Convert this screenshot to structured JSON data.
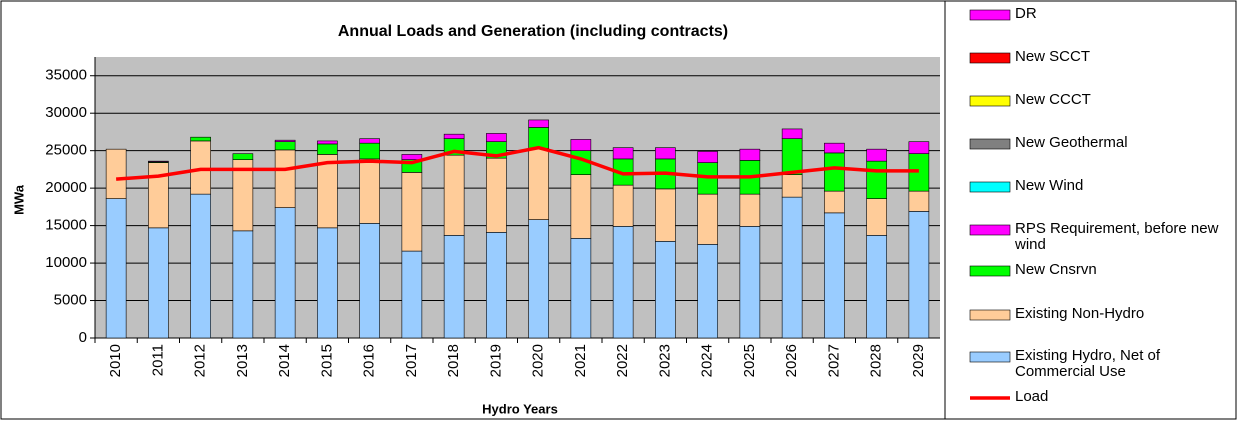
{
  "chart_data": {
    "type": "bar",
    "stacked": true,
    "title": "Annual Loads and Generation (including contracts)",
    "y_label": "MWa",
    "x_label": "Hydro Years",
    "categories": [
      "2010",
      "2011",
      "2012",
      "2013",
      "2014",
      "2015",
      "2016",
      "2017",
      "2018",
      "2019",
      "2020",
      "2021",
      "2022",
      "2023",
      "2024",
      "2025",
      "2026",
      "2027",
      "2028",
      "2029"
    ],
    "ylim": [
      0,
      37500
    ],
    "yticks": [
      0,
      5000,
      10000,
      15000,
      20000,
      25000,
      30000,
      35000
    ],
    "grid": true,
    "legend": "right",
    "series": [
      {
        "name": "DR",
        "color": "#ff00ff",
        "values": [
          0,
          0,
          0,
          0,
          0,
          0,
          0,
          0,
          0,
          0,
          0,
          0,
          0,
          0,
          0,
          0,
          0,
          0,
          0,
          0
        ]
      },
      {
        "name": "New SCCT",
        "color": "#ff0000",
        "values": [
          0,
          0,
          0,
          0,
          0,
          0,
          0,
          0,
          0,
          0,
          0,
          0,
          0,
          0,
          0,
          0,
          0,
          0,
          0,
          0
        ]
      },
      {
        "name": "New CCCT",
        "color": "#ffff00",
        "values": [
          0,
          0,
          0,
          0,
          0,
          0,
          0,
          0,
          0,
          0,
          0,
          0,
          0,
          0,
          0,
          0,
          0,
          0,
          0,
          0
        ]
      },
      {
        "name": "New Geothermal",
        "color": "#808080",
        "values": [
          0,
          0,
          0,
          0,
          0,
          0,
          0,
          0,
          0,
          0,
          0,
          0,
          0,
          0,
          0,
          0,
          0,
          0,
          0,
          0
        ]
      },
      {
        "name": "New Wind",
        "color": "#00ffff",
        "values": [
          0,
          0,
          0,
          0,
          0,
          0,
          0,
          0,
          0,
          0,
          0,
          0,
          0,
          0,
          0,
          0,
          0,
          0,
          0,
          0
        ]
      },
      {
        "name": "RPS Requirement, before new wind",
        "color": "#ff00ff",
        "values": [
          0,
          100,
          0,
          0,
          200,
          400,
          600,
          700,
          600,
          1100,
          1000,
          1500,
          1500,
          1500,
          1500,
          1500,
          1300,
          1300,
          1600,
          1600
        ]
      },
      {
        "name": "New Cnsrvn",
        "color": "#00ff00",
        "values": [
          0,
          100,
          500,
          800,
          1100,
          1400,
          2100,
          1700,
          2200,
          2200,
          2800,
          3200,
          3500,
          4000,
          4200,
          4500,
          4800,
          5100,
          5000,
          5000
        ]
      },
      {
        "name": "Existing Non-Hydro",
        "color": "#ffcc99",
        "values": [
          6600,
          8700,
          7100,
          9500,
          7700,
          9800,
          8600,
          10500,
          10700,
          9900,
          9500,
          8500,
          5500,
          7000,
          6700,
          4300,
          3000,
          2900,
          4900,
          2700
        ]
      },
      {
        "name": "Existing Hydro, Net of Commercial Use",
        "color": "#99ccff",
        "values": [
          18600,
          14700,
          19200,
          14300,
          17400,
          14700,
          15300,
          11600,
          13700,
          14100,
          15800,
          13300,
          14900,
          12900,
          12500,
          14900,
          18800,
          16700,
          13700,
          16900
        ]
      },
      {
        "name": "Load",
        "type": "line",
        "color": "#ff0000",
        "values": [
          21200,
          21600,
          22500,
          22500,
          22500,
          23400,
          23600,
          23400,
          24900,
          24300,
          25400,
          23900,
          21900,
          22000,
          21500,
          21500,
          22100,
          22700,
          22300,
          22300
        ]
      }
    ]
  }
}
